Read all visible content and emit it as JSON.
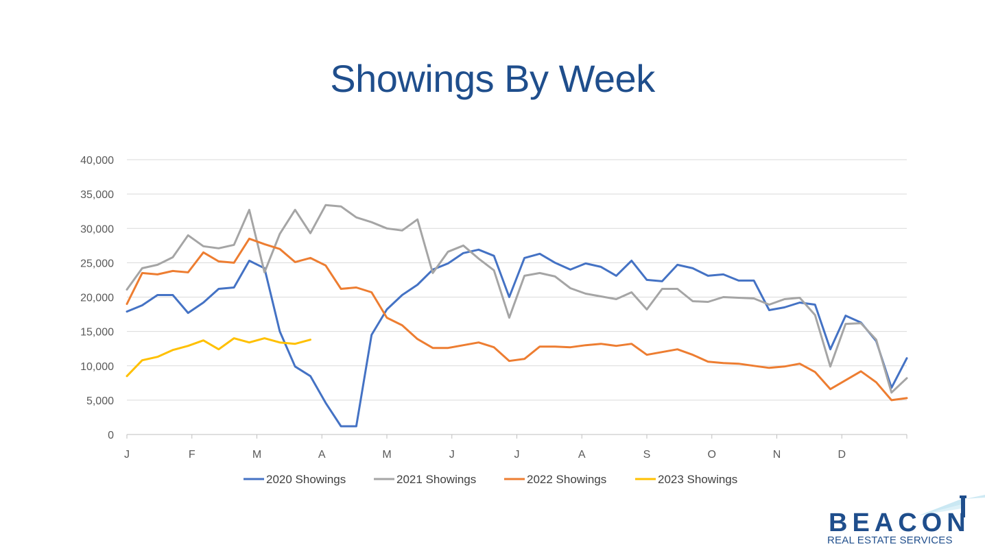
{
  "slide": {
    "title": "Showings By Week"
  },
  "logo": {
    "name": "BEACON",
    "tagline": "REAL ESTATE SERVICES"
  },
  "colors": {
    "title": "#1f4e8c",
    "grid": "#d9d9d9",
    "axis": "#bfbfbf",
    "logo": "#1f4e8c"
  },
  "chart_data": {
    "type": "line",
    "title": "",
    "xlabel": "",
    "ylabel": "",
    "ylim": [
      0,
      40000
    ],
    "yticks": [
      0,
      5000,
      10000,
      15000,
      20000,
      25000,
      30000,
      35000,
      40000
    ],
    "ytick_labels": [
      "0",
      "5,000",
      "10,000",
      "15,000",
      "20,000",
      "25,000",
      "30,000",
      "35,000",
      "40,000"
    ],
    "x_unit": "week",
    "xlim": [
      1,
      52
    ],
    "month_labels": [
      "J",
      "F",
      "M",
      "A",
      "M",
      "J",
      "J",
      "A",
      "S",
      "O",
      "N",
      "D"
    ],
    "month_start_weeks": [
      1,
      5.25,
      9.5,
      13.75,
      18,
      22.25,
      26.5,
      30.75,
      35,
      39.25,
      43.5,
      47.75
    ],
    "grid": true,
    "legend_position": "bottom",
    "series": [
      {
        "name": "2020 Showings",
        "color": "#4472c4",
        "values": [
          17900,
          18800,
          20300,
          20300,
          17700,
          19200,
          21200,
          21400,
          25300,
          24200,
          15000,
          9900,
          8500,
          4600,
          1200,
          1200,
          14500,
          18200,
          20300,
          21800,
          24000,
          24900,
          26400,
          26900,
          26000,
          20000,
          25700,
          26300,
          25000,
          24000,
          24900,
          24400,
          23100,
          25300,
          22500,
          22300,
          24700,
          24200,
          23100,
          23300,
          22400,
          22400,
          18100,
          18500,
          19200,
          18900,
          12400,
          17300,
          16300,
          13600,
          6800,
          11100
        ]
      },
      {
        "name": "2021 Showings",
        "color": "#a5a5a5",
        "values": [
          21100,
          24200,
          24700,
          25800,
          29000,
          27400,
          27100,
          27600,
          32700,
          23600,
          29200,
          32700,
          29300,
          33400,
          33200,
          31600,
          30900,
          30000,
          29700,
          31300,
          23500,
          26600,
          27500,
          25600,
          23900,
          17000,
          23100,
          23500,
          23000,
          21300,
          20500,
          20100,
          19700,
          20700,
          18200,
          21200,
          21200,
          19400,
          19300,
          20000,
          19900,
          19800,
          18900,
          19700,
          19900,
          17400,
          9900,
          16100,
          16200,
          13800,
          6100,
          8200
        ]
      },
      {
        "name": "2022 Showings",
        "color": "#ed7d31",
        "values": [
          19000,
          23500,
          23300,
          23800,
          23600,
          26500,
          25200,
          25000,
          28500,
          27700,
          27000,
          25100,
          25700,
          24600,
          21200,
          21400,
          20700,
          17000,
          15900,
          13900,
          12600,
          12600,
          13000,
          13400,
          12700,
          10700,
          11000,
          12800,
          12800,
          12700,
          13000,
          13200,
          12900,
          13200,
          11600,
          12000,
          12400,
          11600,
          10600,
          10400,
          10300,
          10000,
          9700,
          9900,
          10300,
          9100,
          6600,
          7900,
          9200,
          7600,
          5000,
          5300
        ]
      },
      {
        "name": "2023 Showings",
        "color": "#ffc000",
        "values": [
          8500,
          10800,
          11300,
          12300,
          12900,
          13700,
          12400,
          14000,
          13400,
          14000,
          13400,
          13200,
          13800
        ]
      }
    ]
  }
}
